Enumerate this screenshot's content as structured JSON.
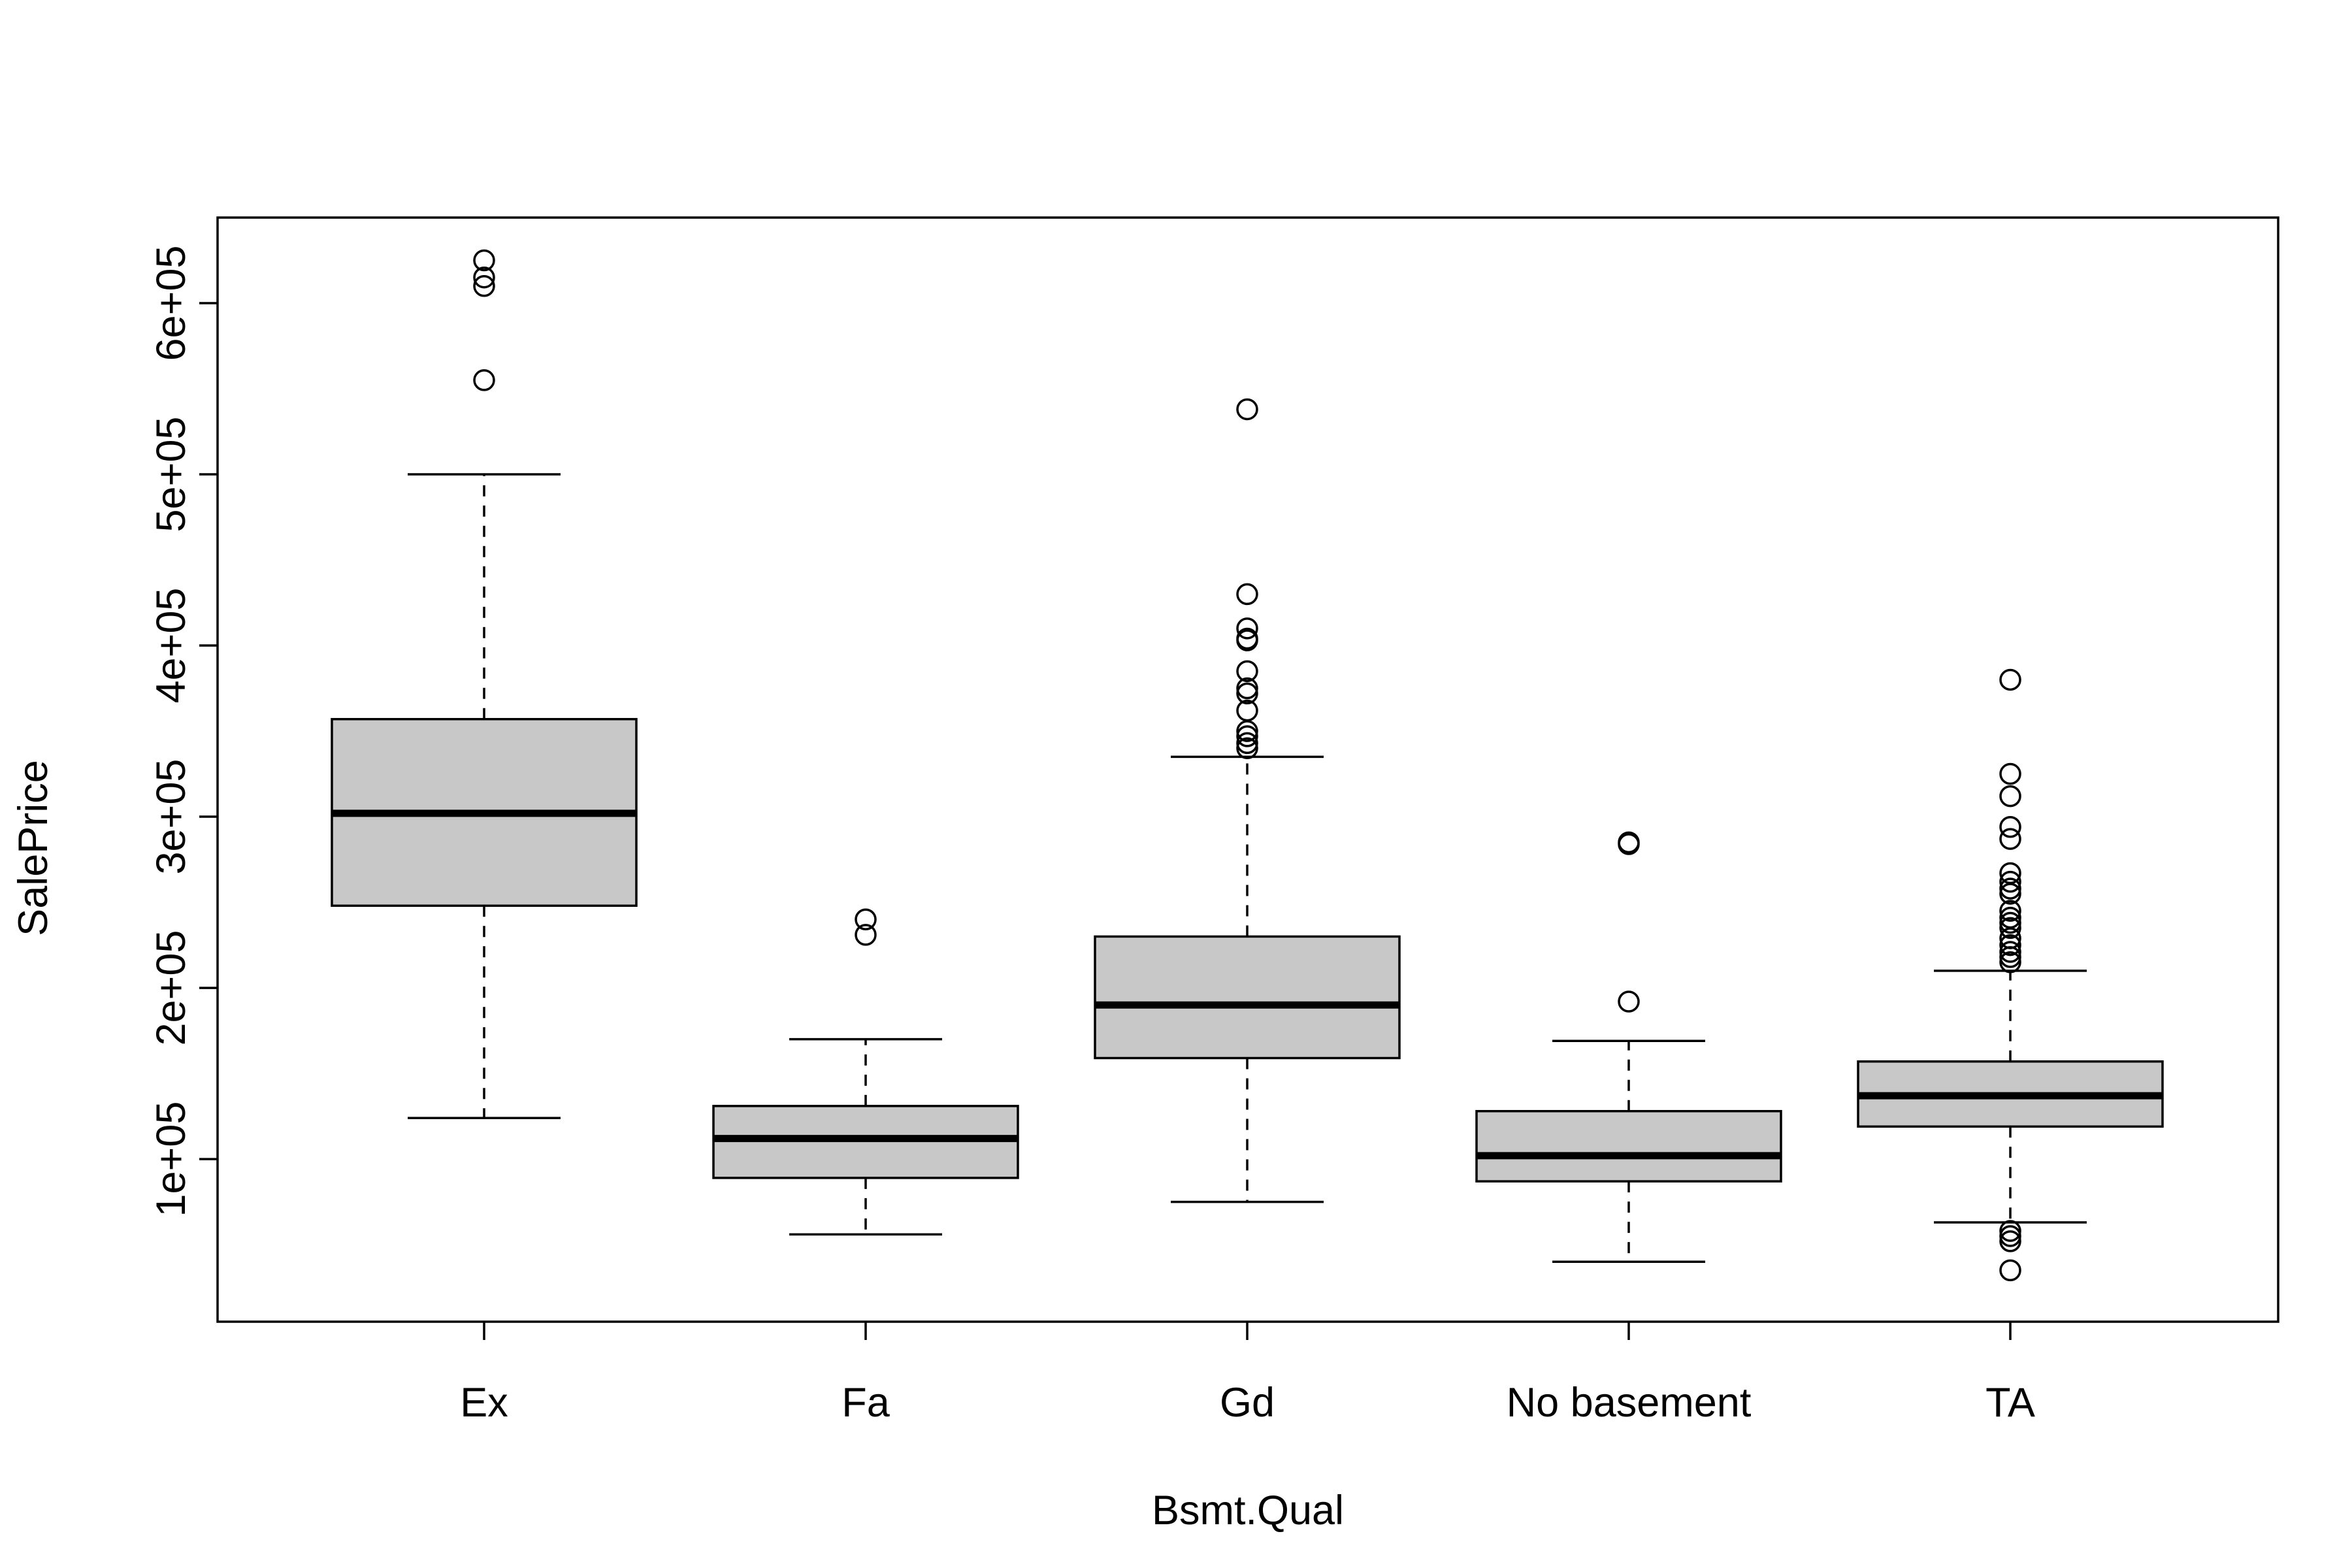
{
  "chart_data": {
    "type": "boxplot",
    "title": "",
    "xlabel": "Bsmt.Qual",
    "ylabel": "SalePrice",
    "ylim": [
      5000,
      650000
    ],
    "yticks": [
      100000,
      200000,
      300000,
      400000,
      500000,
      600000
    ],
    "ytick_labels": [
      "1e+05",
      "2e+05",
      "3e+05",
      "4e+05",
      "5e+05",
      "6e+05"
    ],
    "categories": [
      "Ex",
      "Fa",
      "Gd",
      "No basement",
      "TA"
    ],
    "grid": false,
    "legend": "none",
    "box_fill": "#c8c8c8",
    "line_color": "#000000",
    "boxes": [
      {
        "category": "Ex",
        "whisker_low": 124000,
        "q1": 248000,
        "median": 302000,
        "q3": 357000,
        "whisker_high": 500000,
        "outliers": [
          555000,
          610000,
          615000,
          625000
        ]
      },
      {
        "category": "Fa",
        "whisker_low": 56000,
        "q1": 89000,
        "median": 112000,
        "q3": 131000,
        "whisker_high": 170000,
        "outliers": [
          231000,
          240000
        ]
      },
      {
        "category": "Gd",
        "whisker_low": 75000,
        "q1": 159000,
        "median": 190000,
        "q3": 230000,
        "whisker_high": 335000,
        "outliers": [
          340000,
          343000,
          347000,
          350000,
          362000,
          372000,
          375000,
          385000,
          403000,
          404000,
          410000,
          430000,
          538000
        ]
      },
      {
        "category": "No basement",
        "whisker_low": 40000,
        "q1": 87000,
        "median": 102000,
        "q3": 128000,
        "whisker_high": 169000,
        "outliers": [
          192000,
          284000,
          285000
        ]
      },
      {
        "category": "TA",
        "whisker_low": 63000,
        "q1": 119000,
        "median": 137000,
        "q3": 157000,
        "whisker_high": 210000,
        "outliers": [
          35000,
          52000,
          55000,
          58000,
          215000,
          218000,
          221000,
          225000,
          229000,
          235000,
          238000,
          241000,
          245000,
          255000,
          258000,
          262000,
          267000,
          287000,
          294000,
          312000,
          325000,
          380000
        ]
      }
    ]
  }
}
